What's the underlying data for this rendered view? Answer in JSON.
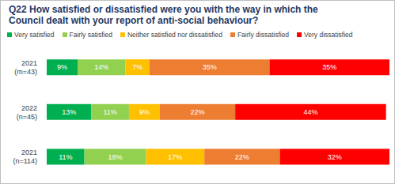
{
  "chart_data": {
    "type": "bar",
    "title": "Q22 How satisfied or dissatisfied were you with the way in which the Council dealt with your report of anti-social behaviour?",
    "orientation": "horizontal",
    "stacked": true,
    "data_labels": true,
    "tick_labels": "y",
    "legend": "top",
    "categories": [
      "2021\n(m=43)",
      "2022\n(n=45)",
      "2021\n(n=114)"
    ],
    "xlim": [
      0,
      100
    ],
    "series": [
      {
        "name": "Very satisfied",
        "color": "#00b050",
        "values": [
          9,
          13,
          11
        ],
        "value_labels": [
          "9%",
          "13%",
          "11%"
        ]
      },
      {
        "name": "Fairly satisfied",
        "color": "#92d050",
        "values": [
          14,
          11,
          18
        ],
        "value_labels": [
          "14%",
          "11%",
          "18%"
        ]
      },
      {
        "name": "Neither satisfied nor dissatisfied",
        "color": "#ffc000",
        "values": [
          7,
          9,
          17
        ],
        "value_labels": [
          "7%",
          "9%",
          "17%"
        ]
      },
      {
        "name": "Fairly dissatisfied",
        "color": "#ed7d31",
        "values": [
          35,
          22,
          22
        ],
        "value_labels": [
          "35%",
          "22%",
          "22%"
        ]
      },
      {
        "name": "Very dissatisfied",
        "color": "#ff0000",
        "values": [
          35,
          44,
          32
        ],
        "value_labels": [
          "35%",
          "44%",
          "32%"
        ]
      }
    ]
  }
}
